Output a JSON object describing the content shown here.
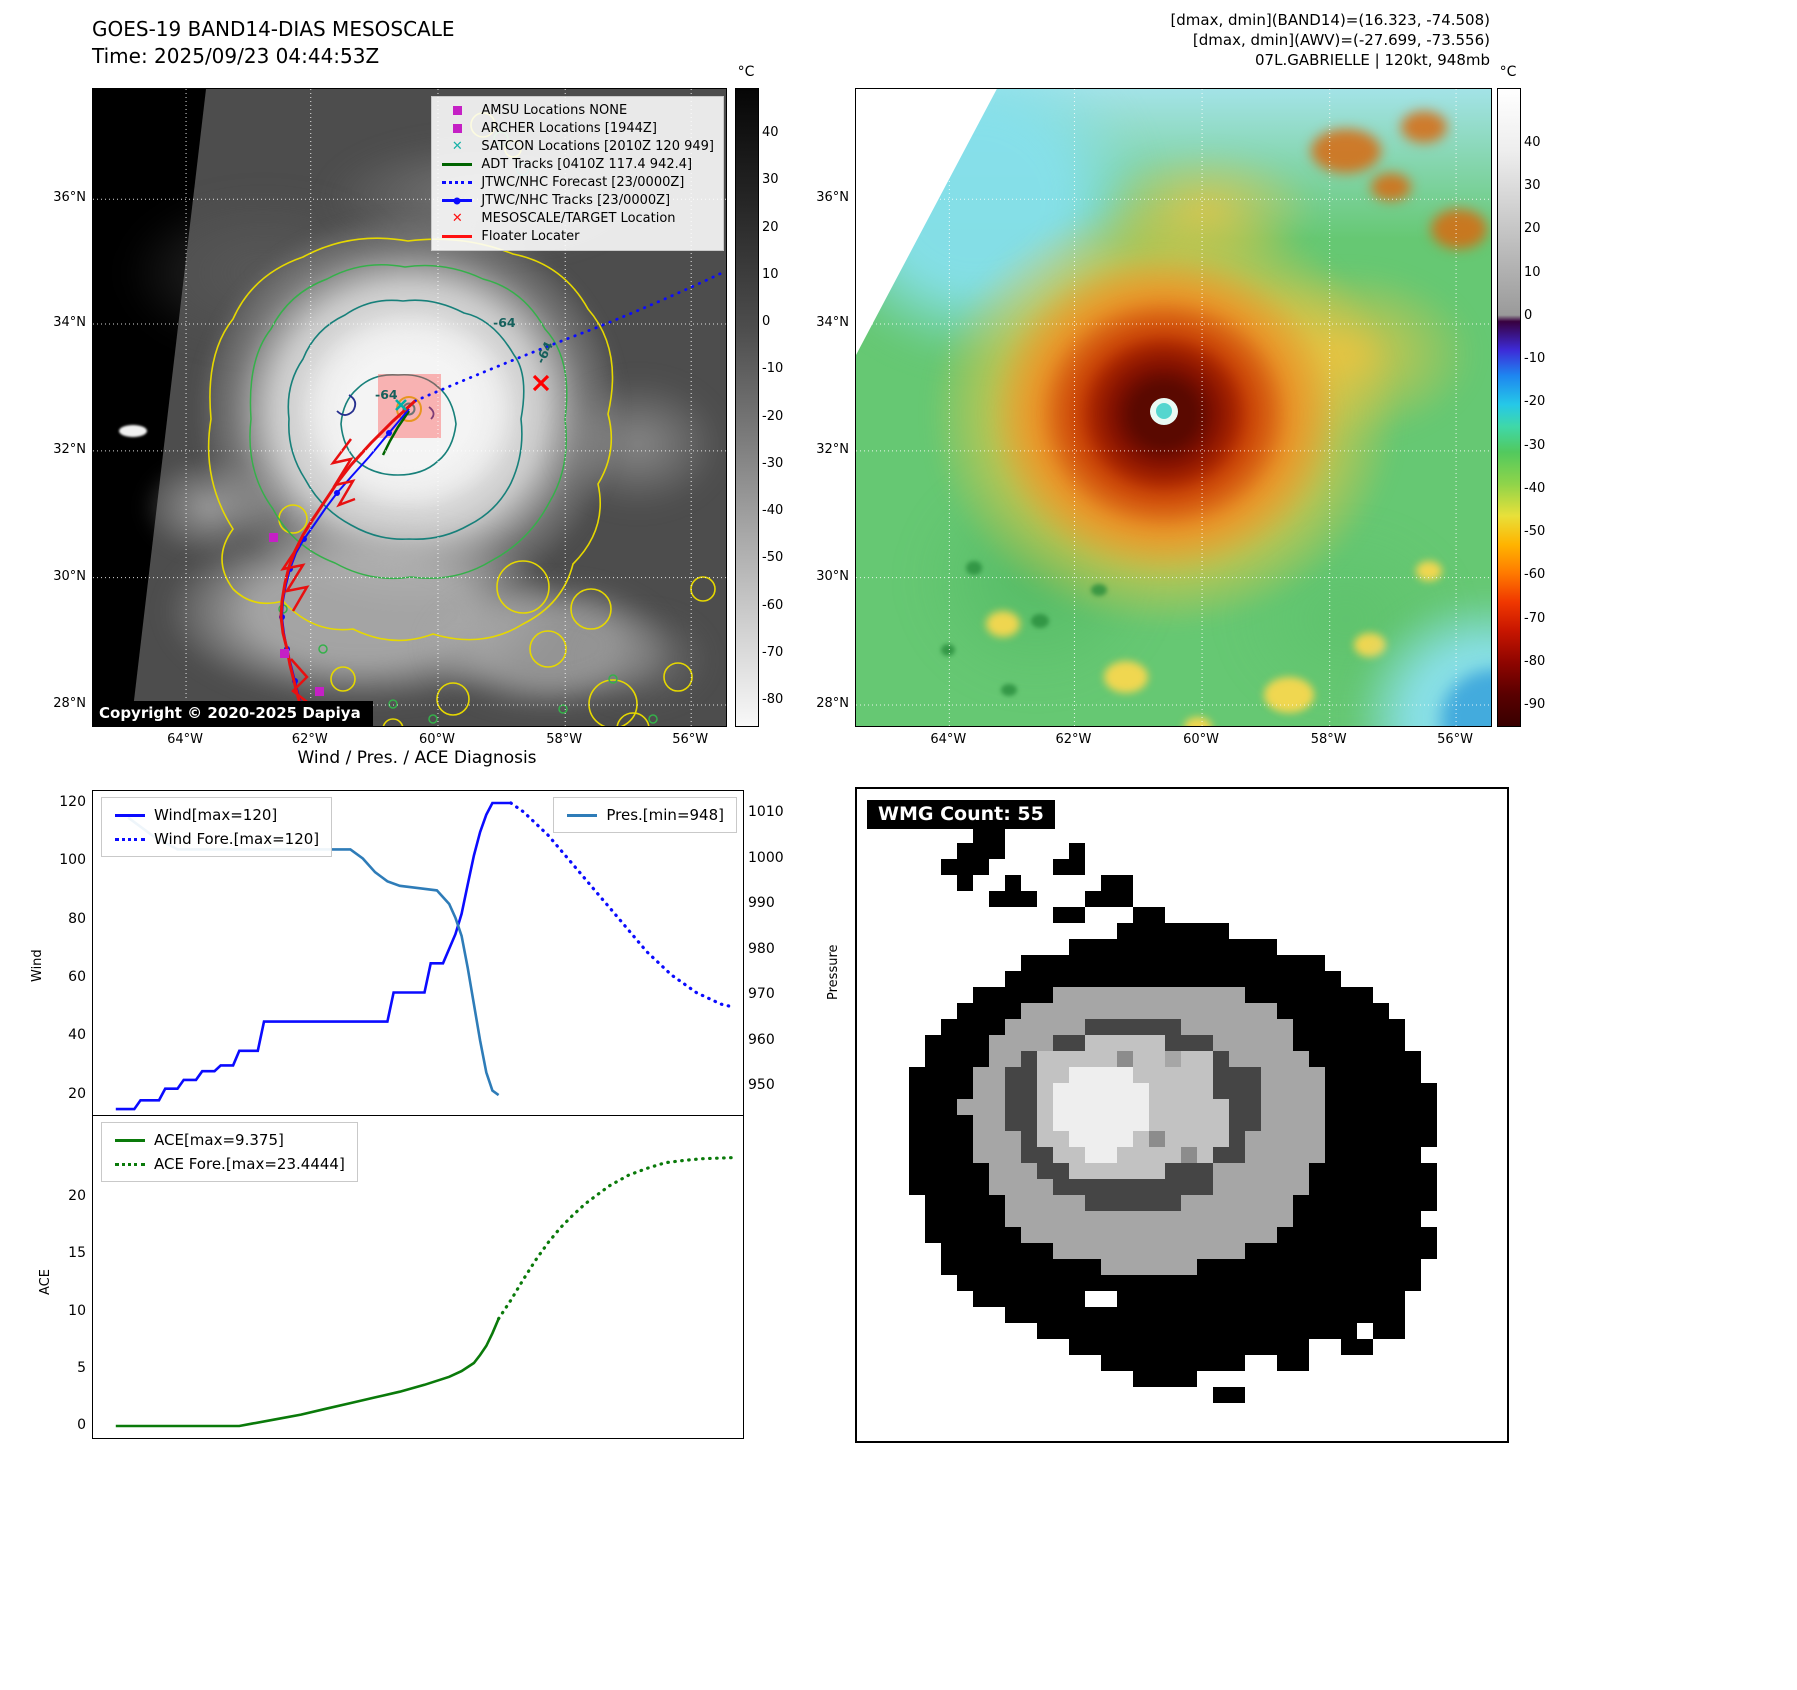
{
  "panel_a": {
    "title_line1": "GOES-19 BAND14-DIAS MESOSCALE",
    "title_line2": "Time: 2025/09/23 04:44:53Z",
    "copyright": "Copyright © 2020-2025 Dapiya",
    "contour_label": "-64",
    "lat_ticks": [
      "36°N",
      "34°N",
      "32°N",
      "30°N",
      "28°N"
    ],
    "lon_ticks": [
      "64°W",
      "62°W",
      "60°W",
      "58°W",
      "56°W"
    ],
    "colorbar": {
      "unit": "°C",
      "ticks": [
        40,
        30,
        20,
        10,
        0,
        -10,
        -20,
        -30,
        -40,
        -50,
        -60,
        -70,
        -80
      ]
    },
    "legend": {
      "items": [
        {
          "marker": "square",
          "color": "#c520c5",
          "label": "AMSU Locations NONE"
        },
        {
          "marker": "square",
          "color": "#c520c5",
          "label": "ARCHER Locations [1944Z]"
        },
        {
          "marker": "x",
          "color": "#18b2a8",
          "label": "SATCON Locations [2010Z 120 949]"
        },
        {
          "marker": "line",
          "color": "#006400",
          "label": "ADT Tracks [0410Z 117.4 942.4]"
        },
        {
          "marker": "dotted",
          "color": "#0b0bff",
          "label": "JTWC/NHC Forecast [23/0000Z]"
        },
        {
          "marker": "line-dot",
          "color": "#0b0bff",
          "label": "JTWC/NHC Tracks [23/0000Z]"
        },
        {
          "marker": "x",
          "color": "#ff1111",
          "label": "MESOSCALE/TARGET Location"
        },
        {
          "marker": "line",
          "color": "#ff1111",
          "label": "Floater Locater"
        }
      ]
    }
  },
  "panel_b": {
    "header_line1": "[dmax, dmin](BAND14)=(16.323, -74.508)",
    "header_line2": "[dmax, dmin](AWV)=(-27.699, -73.556)",
    "header_line3": "07L.GABRIELLE | 120kt, 948mb",
    "lat_ticks": [
      "36°N",
      "34°N",
      "32°N",
      "30°N",
      "28°N"
    ],
    "lon_ticks": [
      "64°W",
      "62°W",
      "60°W",
      "58°W",
      "56°W"
    ],
    "colorbar": {
      "unit": "°C",
      "ticks": [
        40,
        30,
        20,
        10,
        0,
        -10,
        -20,
        -30,
        -40,
        -50,
        -60,
        -70,
        -80,
        -90
      ]
    }
  },
  "chart_data": [
    {
      "type": "line",
      "title": "Wind / Pres. / ACE Diagnosis",
      "ylabel": "Wind",
      "y2label": "Pressure",
      "xlim": [
        0,
        100
      ],
      "ylim": [
        12,
        124
      ],
      "y2lim": [
        943,
        1015
      ],
      "yticks": [
        20,
        40,
        60,
        80,
        100,
        120
      ],
      "y2ticks": [
        950,
        960,
        970,
        980,
        990,
        1000,
        1010
      ],
      "grid": false,
      "legend_position": "upper-left and upper-right",
      "series": [
        {
          "name": "Wind[max=120]",
          "style": "solid",
          "axis": "left",
          "color": "#0b0bff",
          "points": [
            [
              0,
              15
            ],
            [
              3,
              15
            ],
            [
              4,
              18
            ],
            [
              7,
              18
            ],
            [
              8,
              22
            ],
            [
              10,
              22
            ],
            [
              11,
              25
            ],
            [
              13,
              25
            ],
            [
              14,
              28
            ],
            [
              16,
              28
            ],
            [
              17,
              30
            ],
            [
              19,
              30
            ],
            [
              20,
              35
            ],
            [
              23,
              35
            ],
            [
              24,
              45
            ],
            [
              44,
              45
            ],
            [
              45,
              55
            ],
            [
              50,
              55
            ],
            [
              51,
              65
            ],
            [
              53,
              65
            ],
            [
              54,
              70
            ],
            [
              55,
              75
            ],
            [
              56,
              82
            ],
            [
              57,
              92
            ],
            [
              58,
              102
            ],
            [
              59,
              110
            ],
            [
              60,
              116
            ],
            [
              61,
              120
            ],
            [
              64,
              120
            ]
          ]
        },
        {
          "name": "Wind Fore.[max=120]",
          "style": "dotted",
          "axis": "left",
          "color": "#0b0bff",
          "points": [
            [
              64,
              120
            ],
            [
              66,
              117
            ],
            [
              68,
              113
            ],
            [
              70,
              109
            ],
            [
              72,
              104
            ],
            [
              74,
              99
            ],
            [
              76,
              94
            ],
            [
              78,
              89
            ],
            [
              80,
              84
            ],
            [
              82,
              79
            ],
            [
              84,
              74
            ],
            [
              86,
              69
            ],
            [
              88,
              65
            ],
            [
              90,
              61
            ],
            [
              92,
              58
            ],
            [
              94,
              55
            ],
            [
              96,
              53
            ],
            [
              98,
              51
            ],
            [
              100,
              50
            ]
          ]
        },
        {
          "name": "Pres.[min=948]",
          "style": "solid",
          "axis": "right",
          "color": "#2e7cb8",
          "points": [
            [
              2,
              1009
            ],
            [
              6,
              1005
            ],
            [
              10,
              1002
            ],
            [
              38,
              1002
            ],
            [
              40,
              1000
            ],
            [
              42,
              997
            ],
            [
              44,
              995
            ],
            [
              46,
              994
            ],
            [
              52,
              993
            ],
            [
              54,
              990
            ],
            [
              55,
              987
            ],
            [
              56,
              983
            ],
            [
              57,
              976
            ],
            [
              58,
              968
            ],
            [
              59,
              960
            ],
            [
              60,
              953
            ],
            [
              61,
              949
            ],
            [
              62,
              948
            ]
          ]
        }
      ]
    },
    {
      "type": "line",
      "ylabel": "ACE",
      "xlim": [
        0,
        100
      ],
      "ylim": [
        -1,
        27
      ],
      "yticks": [
        0,
        5,
        10,
        15,
        20
      ],
      "grid": false,
      "legend_position": "upper-left",
      "series": [
        {
          "name": "ACE[max=9.375]",
          "style": "solid",
          "axis": "left",
          "color": "#0a7a0a",
          "points": [
            [
              0,
              0
            ],
            [
              20,
              0
            ],
            [
              22,
              0.2
            ],
            [
              26,
              0.6
            ],
            [
              30,
              1.0
            ],
            [
              34,
              1.5
            ],
            [
              38,
              2.0
            ],
            [
              42,
              2.5
            ],
            [
              46,
              3.0
            ],
            [
              50,
              3.6
            ],
            [
              54,
              4.3
            ],
            [
              56,
              4.8
            ],
            [
              58,
              5.5
            ],
            [
              59,
              6.2
            ],
            [
              60,
              7.0
            ],
            [
              61,
              8.1
            ],
            [
              62,
              9.375
            ]
          ]
        },
        {
          "name": "ACE Fore.[max=23.4444]",
          "style": "dotted",
          "axis": "left",
          "color": "#0a7a0a",
          "points": [
            [
              62,
              9.375
            ],
            [
              64,
              11.0
            ],
            [
              66,
              12.8
            ],
            [
              68,
              14.5
            ],
            [
              70,
              16.0
            ],
            [
              72,
              17.3
            ],
            [
              74,
              18.4
            ],
            [
              76,
              19.4
            ],
            [
              78,
              20.2
            ],
            [
              80,
              21.0
            ],
            [
              83,
              21.9
            ],
            [
              86,
              22.5
            ],
            [
              89,
              23.0
            ],
            [
              92,
              23.2
            ],
            [
              95,
              23.35
            ],
            [
              100,
              23.4444
            ]
          ]
        }
      ]
    }
  ],
  "wmg": {
    "label": "WMG Count: 55",
    "palette": {
      "K": "#000000",
      "g": "#a6a6a6",
      "G": "#8c8c8c",
      "D": "#454545",
      "l": "#c2c2c2",
      "w": "#eeeeee"
    },
    "rows": [
      "........................................",
      "........................................",
      ".......KK...............................",
      "......KKK....K..........................",
      ".....KKK....KK..........................",
      "......K..K.....KK.......................",
      "........KKK...KKK.......................",
      "............KK...KK.....................",
      "................KKKKKKK.................",
      ".............KKKKKKKKKKKKK..............",
      "..........KKKKKKKKKKKKKKKKKKK...........",
      ".........KKKKKKKKKKKKKKKKKKKKK..........",
      ".......KKKKKggggggggggggKKKKKKKK........",
      "......KKKKggggggggggggggggKKKKKKK.......",
      ".....KKKKgggggDDDDDDgggggggKKKKKKK......",
      "....KKKKggggDDlllllDDDgggggKKKKKKK......",
      "....KKKKggDlllllGllgllDgggggKKKKKKK.....",
      "...KKKKggDDllwwwwlllllDDDggggKKKKKK.....",
      "...KKKKggDDlwwwwwwllllDDDggggKKKKKKK....",
      "...KKKgggDDlwwwwwwlllllDDggggKKKKKKK....",
      "...KKKKggDDlwwwwwwlllllDDggggKKKKKKK....",
      "...KKKKgggDllwwwwlGllllDgggggKKKKKKK....",
      "...KKKKgggDDllwwllllGlDDgggggKKKKKK.....",
      "...KKKKKgggDDllllllDDDggggggKKKKKKKK....",
      "...KKKKKggggDDDDDDDDDDggggggKKKKKKKK....",
      "....KKKKKgggggDDDDDDgggggggKKKKKKKKK....",
      "....KKKKKggggggggggggggggggKKKKKKKK.....",
      "....KKKKKKggggggggggggggggKKKKKKKKKK....",
      ".....KKKKKKKggggggggggggKKKKKKKKKKKK....",
      ".....KKKKKKKKKKggggggKKKKKKKKKKKKKK.....",
      "......KKKKKKKKKKKKKKKKKKKKKKKKKKKKK.....",
      ".......KKKKKKK..KKKKKKKKKKKKKKKKKK......",
      ".........KKKKKKKKKKKKKKKKKKKKKKKKK......",
      "...........KKKKKKKKKKKKKKKKKKKK.KK......",
      ".............KKKKKKKKKKKKKKK..KK........",
      "...............KKKKKKKKK..KK............",
      ".................KKKK...................",
      "......................KK................",
      "........................................",
      "........................................"
    ]
  }
}
